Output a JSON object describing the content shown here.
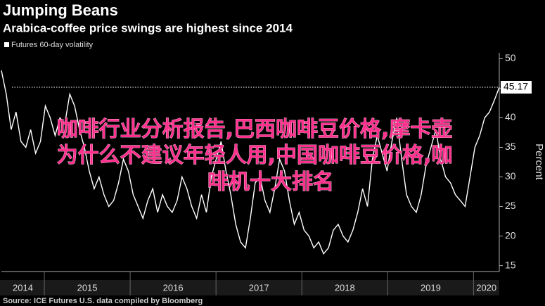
{
  "chart_data": {
    "type": "line",
    "title": "Jumping Beans",
    "subtitle": "Arabica-coffee price swings are highest since 2014",
    "y_label": "Percent",
    "source": "Source: ICE Futures U.S. data compiled by Bloomberg",
    "series": [
      {
        "name": "Futures 60-day volatility",
        "color": "#ffffff",
        "values": [
          48,
          44,
          38,
          41,
          36,
          35,
          38,
          34,
          36,
          42,
          40,
          37,
          40,
          39,
          44,
          42,
          38,
          35,
          31,
          28,
          30,
          27,
          25,
          26,
          29,
          33,
          31,
          27,
          25,
          23,
          26,
          28,
          24,
          27,
          25,
          24,
          26,
          30,
          28,
          25,
          23,
          27,
          24,
          30,
          33,
          36,
          31,
          27,
          22,
          19,
          18,
          23,
          29,
          30,
          26,
          24,
          28,
          33,
          31,
          26,
          22,
          24,
          21,
          20,
          18,
          19,
          17,
          18,
          21,
          22,
          20,
          19,
          21,
          24,
          28,
          25,
          33,
          37,
          34,
          31,
          36,
          40,
          33,
          27,
          25,
          24,
          27,
          32,
          35,
          38,
          33,
          30,
          29,
          27,
          26,
          25,
          30,
          35,
          37,
          40,
          41,
          43,
          45.17
        ]
      }
    ],
    "xlim": [
      2014.5,
      2020.3
    ],
    "xticks": [
      2014,
      2015,
      2016,
      2017,
      2018,
      2019,
      2020
    ],
    "ylim": [
      14,
      51
    ],
    "yticks": [
      15,
      20,
      25,
      30,
      35,
      40,
      45,
      50
    ],
    "last_value_line": true,
    "overlay_text": [
      "咖啡行业分析报告,巴西咖啡豆价格,摩卡壶",
      "为什么不建议年轻人用,中国咖啡豆价格,咖",
      "啡机十大排名"
    ]
  }
}
